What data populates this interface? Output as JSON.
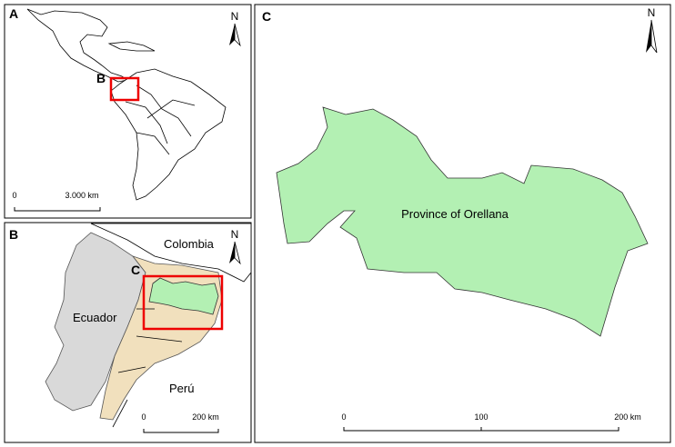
{
  "panels": [
    {
      "label": "A",
      "north": "N",
      "inset_label": "B",
      "scale": {
        "start": "0",
        "end": "3.000 km"
      }
    },
    {
      "label": "B",
      "north": "N",
      "inset_label": "C",
      "places": [
        "Colombia",
        "Ecuador",
        "Perú"
      ],
      "scale": {
        "start": "0",
        "end": "200 km"
      }
    },
    {
      "label": "C",
      "north": "N",
      "region": "Province of Orellana",
      "scale": {
        "start": "0",
        "mid": "100",
        "end": "200 km"
      }
    }
  ]
}
